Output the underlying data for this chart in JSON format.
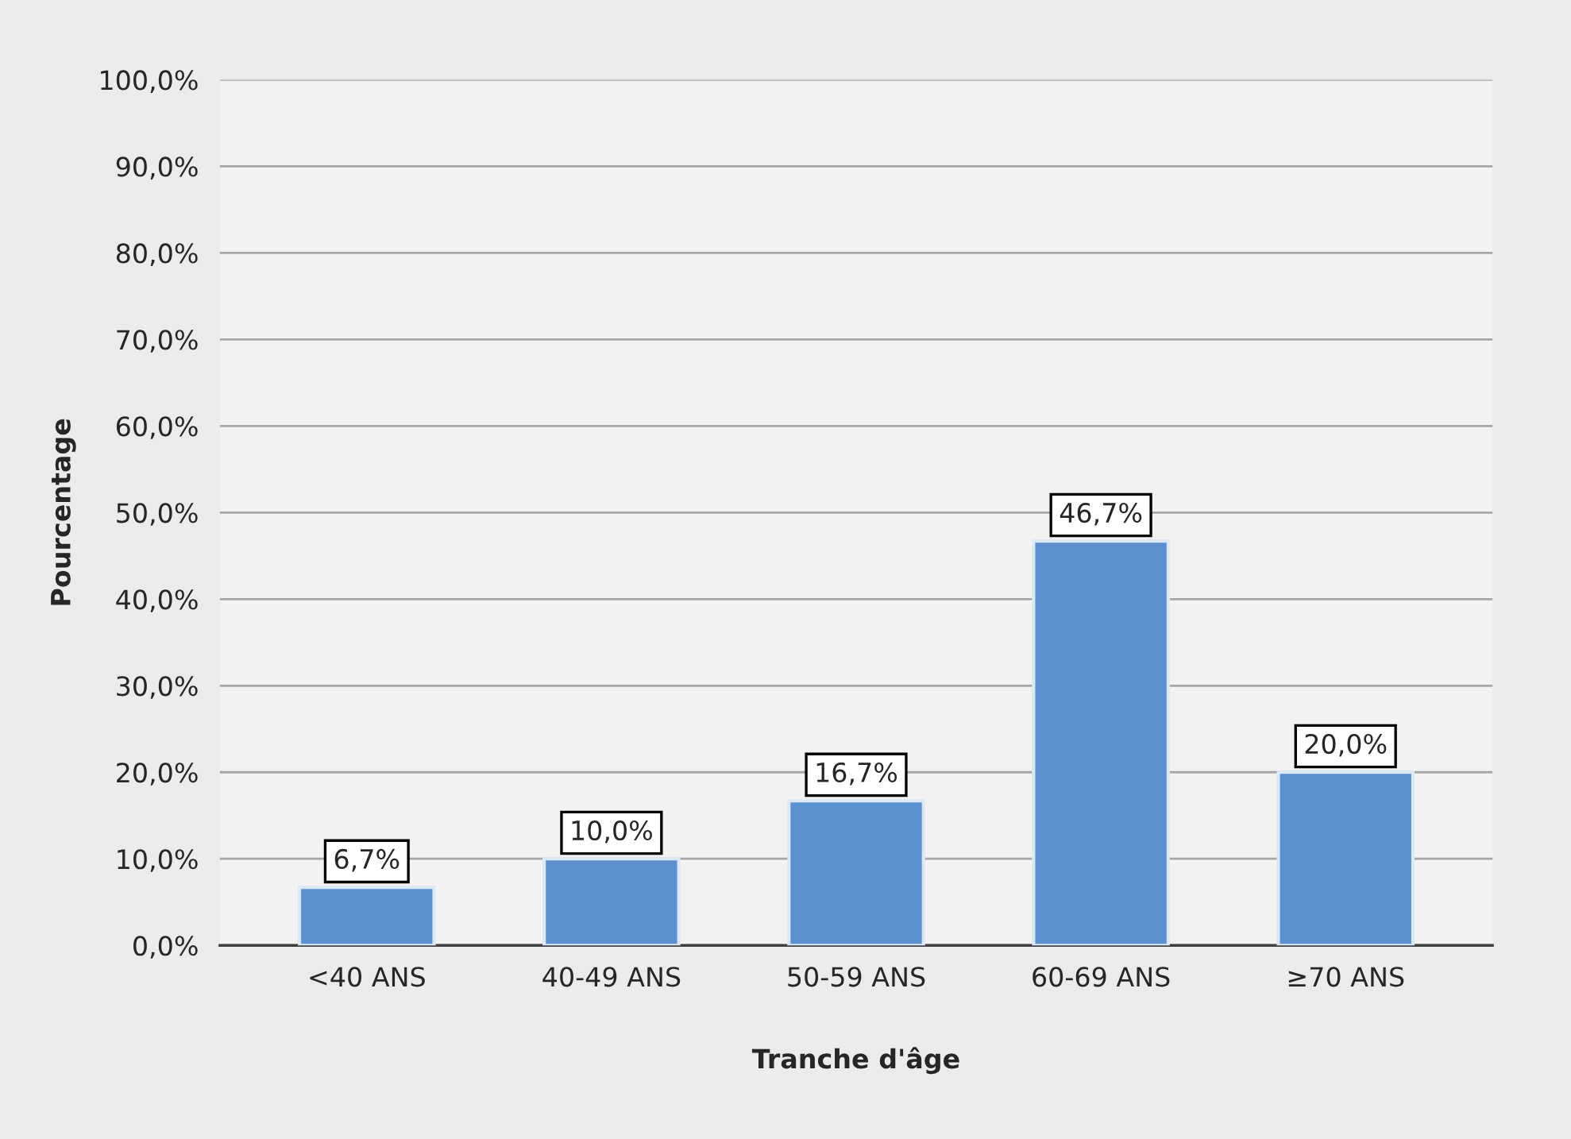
{
  "chart_data": {
    "type": "bar",
    "xlabel": "Tranche d'âge",
    "ylabel": "Pourcentage",
    "categories": [
      "<40 ANS",
      "40-49 ANS",
      "50-59 ANS",
      "60-69 ANS",
      "≥70 ANS"
    ],
    "values": [
      6.7,
      10.0,
      16.7,
      46.7,
      20.0
    ],
    "value_labels": [
      "6,7%",
      "10,0%",
      "16,7%",
      "46,7%",
      "20,0%"
    ],
    "color": "#5b8fcf",
    "ylim": [
      0,
      100
    ],
    "yticks": [
      {
        "value": 0,
        "label": "0,0%"
      },
      {
        "value": 10,
        "label": "10,0%"
      },
      {
        "value": 20,
        "label": "20,0%"
      },
      {
        "value": 30,
        "label": "30,0%"
      },
      {
        "value": 40,
        "label": "40,0%"
      },
      {
        "value": 50,
        "label": "50,0%"
      },
      {
        "value": 60,
        "label": "60,0%"
      },
      {
        "value": 70,
        "label": "70,0%"
      },
      {
        "value": 80,
        "label": "80,0%"
      },
      {
        "value": 90,
        "label": "90,0%"
      },
      {
        "value": 100,
        "label": "100,0%"
      }
    ],
    "grid": "y",
    "legend": false
  }
}
